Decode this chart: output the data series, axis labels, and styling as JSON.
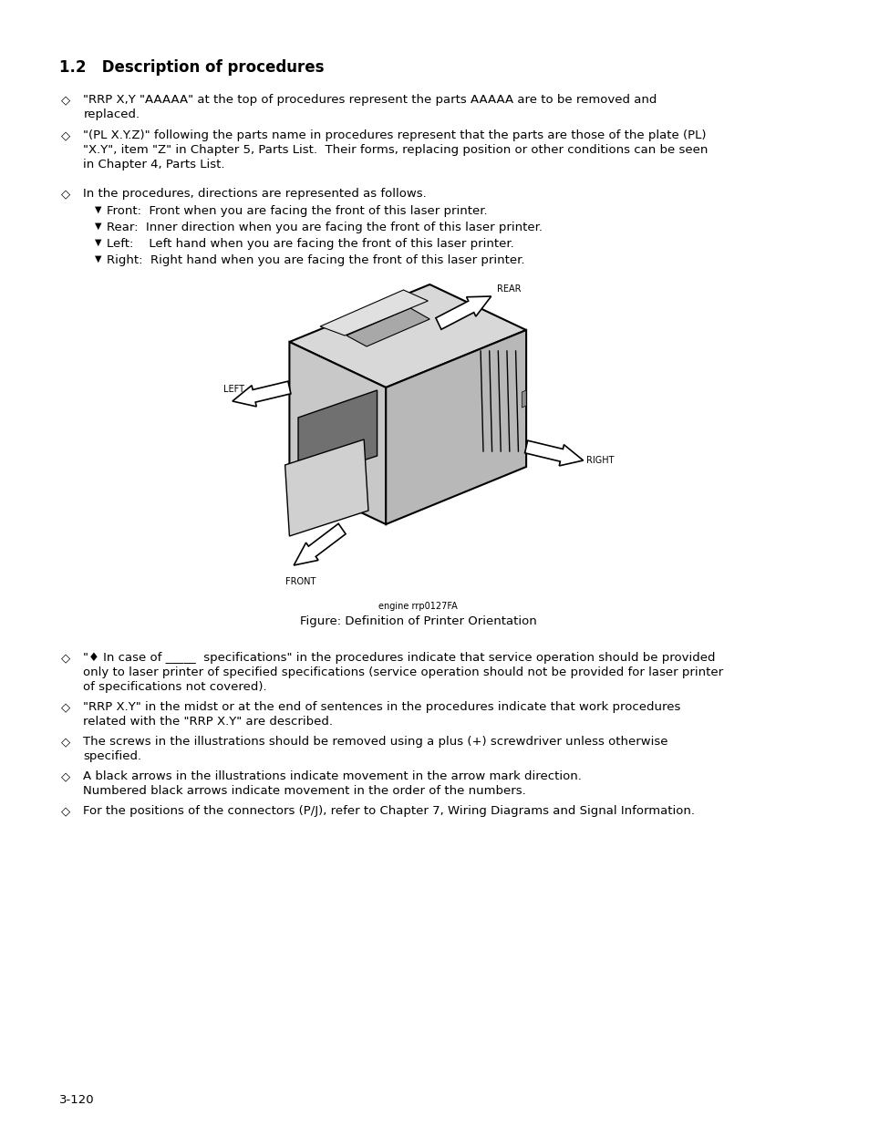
{
  "bg_color": "#ffffff",
  "page_width": 9.54,
  "page_height": 12.35,
  "title": "1.2   Description of procedures",
  "bullet_symbol": "◇",
  "triangle": "▼",
  "fig_label_small": "engine rrp0127FA",
  "fig_label": "Figure: Definition of Printer Orientation",
  "page_number": "3-120",
  "font_family": "DejaVu Sans",
  "title_fontsize": 12,
  "body_fontsize": 9.5,
  "small_fontsize": 7
}
